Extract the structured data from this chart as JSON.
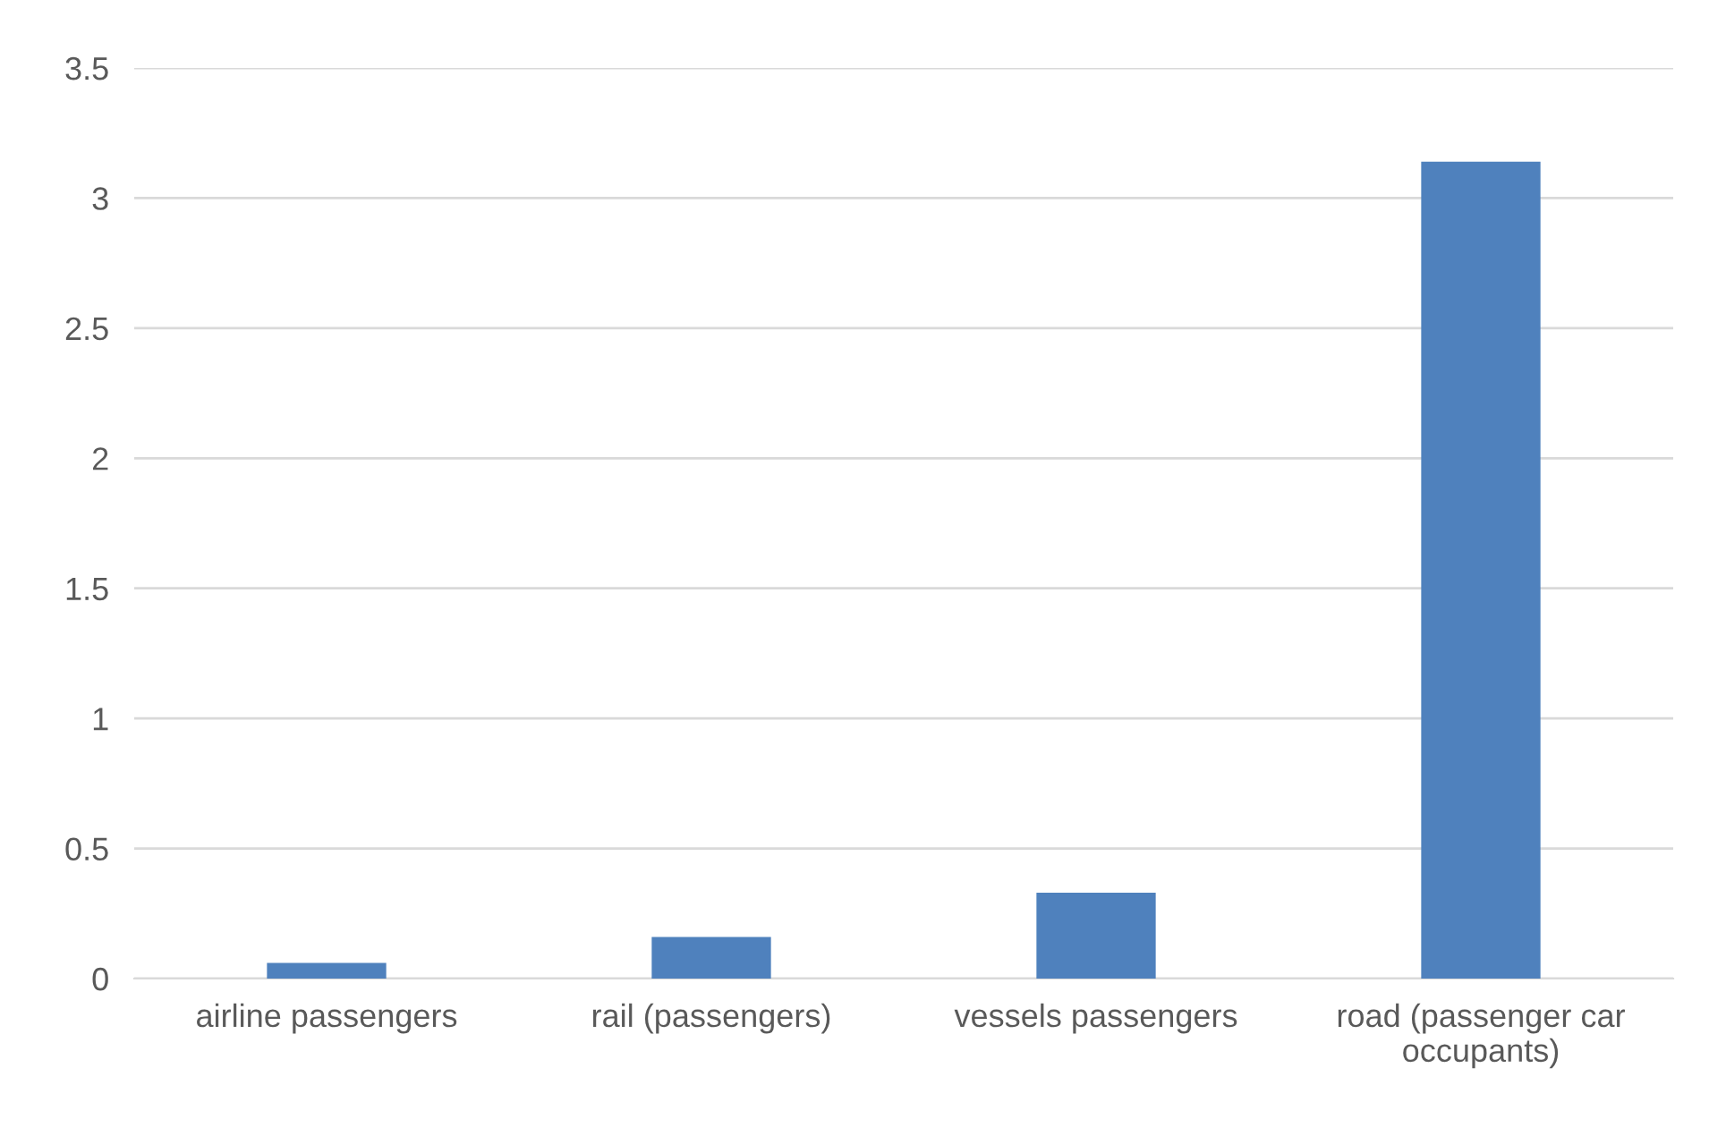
{
  "chart_data": {
    "type": "bar",
    "categories": [
      "airline passengers",
      "rail (passengers)",
      "vessels passengers",
      "road (passenger car\noccupants)"
    ],
    "values": [
      0.06,
      0.16,
      0.33,
      3.14
    ],
    "color": "#4f81bd",
    "ylim": [
      0,
      3.5
    ],
    "yticks": [
      {
        "value": 0,
        "label": "0"
      },
      0.5,
      1,
      1.5,
      2,
      2.5,
      3,
      3.5
    ],
    "grid": "y",
    "legend": false
  }
}
